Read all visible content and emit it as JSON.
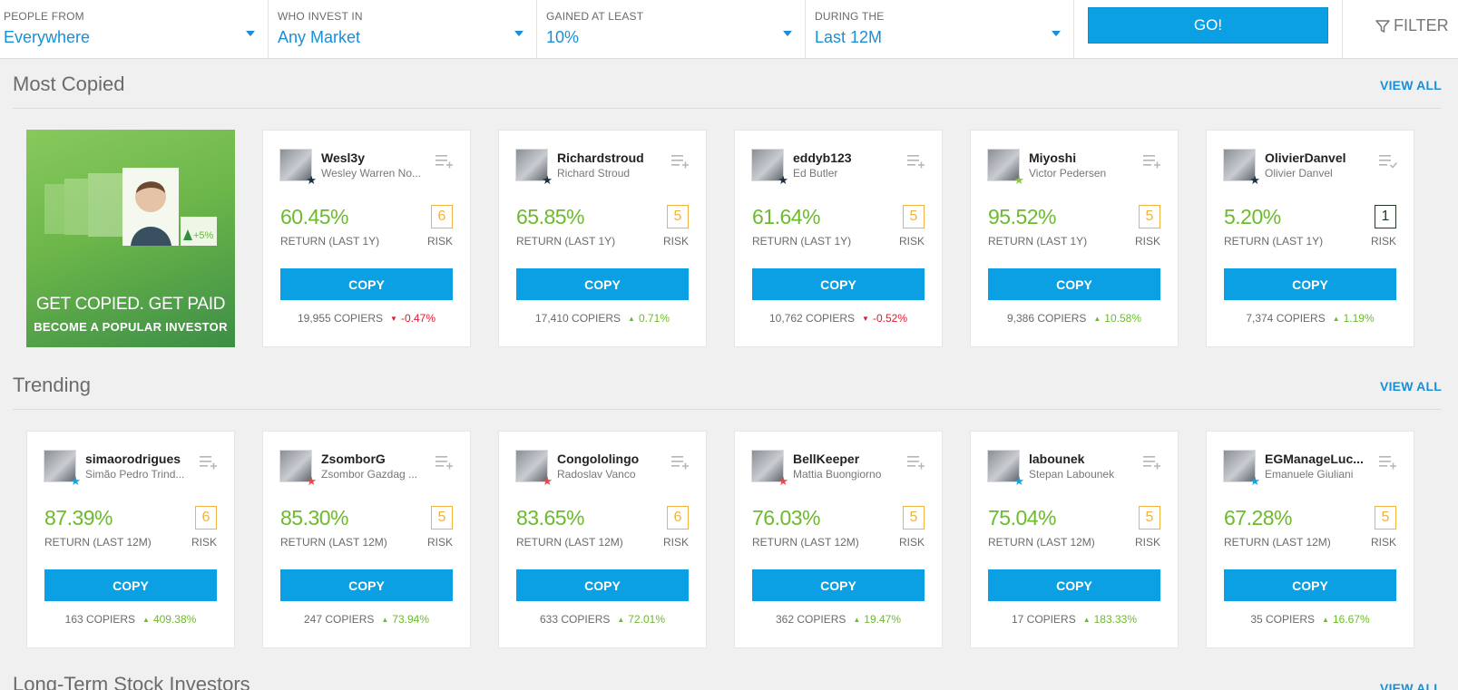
{
  "filters": [
    {
      "label": "PEOPLE FROM",
      "value": "Everywhere"
    },
    {
      "label": "WHO INVEST IN",
      "value": "Any Market"
    },
    {
      "label": "GAINED AT LEAST",
      "value": "10%"
    },
    {
      "label": "DURING THE",
      "value": "Last 12M"
    }
  ],
  "go_label": "GO!",
  "filter_label": "FILTER",
  "sections": {
    "most_copied": {
      "title": "Most Copied",
      "view_all": "VIEW ALL",
      "promo": {
        "line1": "GET COPIED. GET PAID",
        "line2": "BECOME A POPULAR INVESTOR",
        "badge": "+5%"
      },
      "cards": [
        {
          "username": "Wesl3y",
          "fullname": "Wesley Warren No...",
          "return": "60.45%",
          "return_label": "RETURN (LAST 1Y)",
          "risk": "6",
          "risk_label": "RISK",
          "copy": "COPY",
          "copiers": "19,955 COPIERS",
          "change": "-0.47%",
          "trend": "down",
          "star_color": "#1b2f45",
          "watchlist_icon": "add-to-watchlist-icon"
        },
        {
          "username": "Richardstroud",
          "fullname": "Richard Stroud",
          "return": "65.85%",
          "return_label": "RETURN (LAST 1Y)",
          "risk": "5",
          "risk_label": "RISK",
          "copy": "COPY",
          "copiers": "17,410 COPIERS",
          "change": "0.71%",
          "trend": "up",
          "star_color": "#1b2f45",
          "watchlist_icon": "add-to-watchlist-icon"
        },
        {
          "username": "eddyb123",
          "fullname": "Ed Butler",
          "return": "61.64%",
          "return_label": "RETURN (LAST 1Y)",
          "risk": "5",
          "risk_label": "RISK",
          "copy": "COPY",
          "copiers": "10,762 COPIERS",
          "change": "-0.52%",
          "trend": "down",
          "star_color": "#1b2f45",
          "watchlist_icon": "add-to-watchlist-icon"
        },
        {
          "username": "Miyoshi",
          "fullname": "Victor Pedersen",
          "return": "95.52%",
          "return_label": "RETURN (LAST 1Y)",
          "risk": "5",
          "risk_label": "RISK",
          "copy": "COPY",
          "copiers": "9,386 COPIERS",
          "change": "10.58%",
          "trend": "up",
          "star_color": "#8cc63f",
          "watchlist_icon": "add-to-watchlist-icon"
        },
        {
          "username": "OlivierDanvel",
          "fullname": "Olivier Danvel",
          "return": "5.20%",
          "return_label": "RETURN (LAST 1Y)",
          "risk": "1",
          "risk_label": "RISK",
          "copy": "COPY",
          "copiers": "7,374 COPIERS",
          "change": "1.19%",
          "trend": "up",
          "star_color": "#1b2f45",
          "watchlist_icon": "in-watchlist-icon"
        }
      ]
    },
    "trending": {
      "title": "Trending",
      "view_all": "VIEW ALL",
      "cards": [
        {
          "username": "simaorodrigues",
          "fullname": "Simão Pedro Trind...",
          "return": "87.39%",
          "return_label": "RETURN (LAST 12M)",
          "risk": "6",
          "risk_label": "RISK",
          "copy": "COPY",
          "copiers": "163 COPIERS",
          "change": "409.38%",
          "trend": "up",
          "star_color": "#16a2e0",
          "watchlist_icon": "add-to-watchlist-icon"
        },
        {
          "username": "ZsomborG",
          "fullname": "Zsombor Gazdag ...",
          "return": "85.30%",
          "return_label": "RETURN (LAST 12M)",
          "risk": "5",
          "risk_label": "RISK",
          "copy": "COPY",
          "copiers": "247 COPIERS",
          "change": "73.94%",
          "trend": "up",
          "star_color": "#e8474d",
          "watchlist_icon": "add-to-watchlist-icon"
        },
        {
          "username": "Congololingo",
          "fullname": "Radoslav Vanco",
          "return": "83.65%",
          "return_label": "RETURN (LAST 12M)",
          "risk": "6",
          "risk_label": "RISK",
          "copy": "COPY",
          "copiers": "633 COPIERS",
          "change": "72.01%",
          "trend": "up",
          "star_color": "#e8474d",
          "watchlist_icon": "add-to-watchlist-icon"
        },
        {
          "username": "BellKeeper",
          "fullname": "Mattia Buongiorno",
          "return": "76.03%",
          "return_label": "RETURN (LAST 12M)",
          "risk": "5",
          "risk_label": "RISK",
          "copy": "COPY",
          "copiers": "362 COPIERS",
          "change": "19.47%",
          "trend": "up",
          "star_color": "#e8474d",
          "watchlist_icon": "add-to-watchlist-icon"
        },
        {
          "username": "labounek",
          "fullname": "Stepan Labounek",
          "return": "75.04%",
          "return_label": "RETURN (LAST 12M)",
          "risk": "5",
          "risk_label": "RISK",
          "copy": "COPY",
          "copiers": "17 COPIERS",
          "change": "183.33%",
          "trend": "up",
          "star_color": "#16a2e0",
          "watchlist_icon": "add-to-watchlist-icon"
        },
        {
          "username": "EGManageLuc...",
          "fullname": "Emanuele Giuliani",
          "return": "67.28%",
          "return_label": "RETURN (LAST 12M)",
          "risk": "5",
          "risk_label": "RISK",
          "copy": "COPY",
          "copiers": "35 COPIERS",
          "change": "16.67%",
          "trend": "up",
          "star_color": "#16a2e0",
          "watchlist_icon": "add-to-watchlist-icon"
        }
      ]
    },
    "long_term": {
      "title": "Long-Term Stock Investors",
      "view_all": "VIEW ALL"
    }
  },
  "colors": {
    "accent": "#0aa0e3",
    "link": "#1a8fd6",
    "positive": "#6cbb2b",
    "negative": "#e0192f",
    "risk": "#f0b341"
  }
}
